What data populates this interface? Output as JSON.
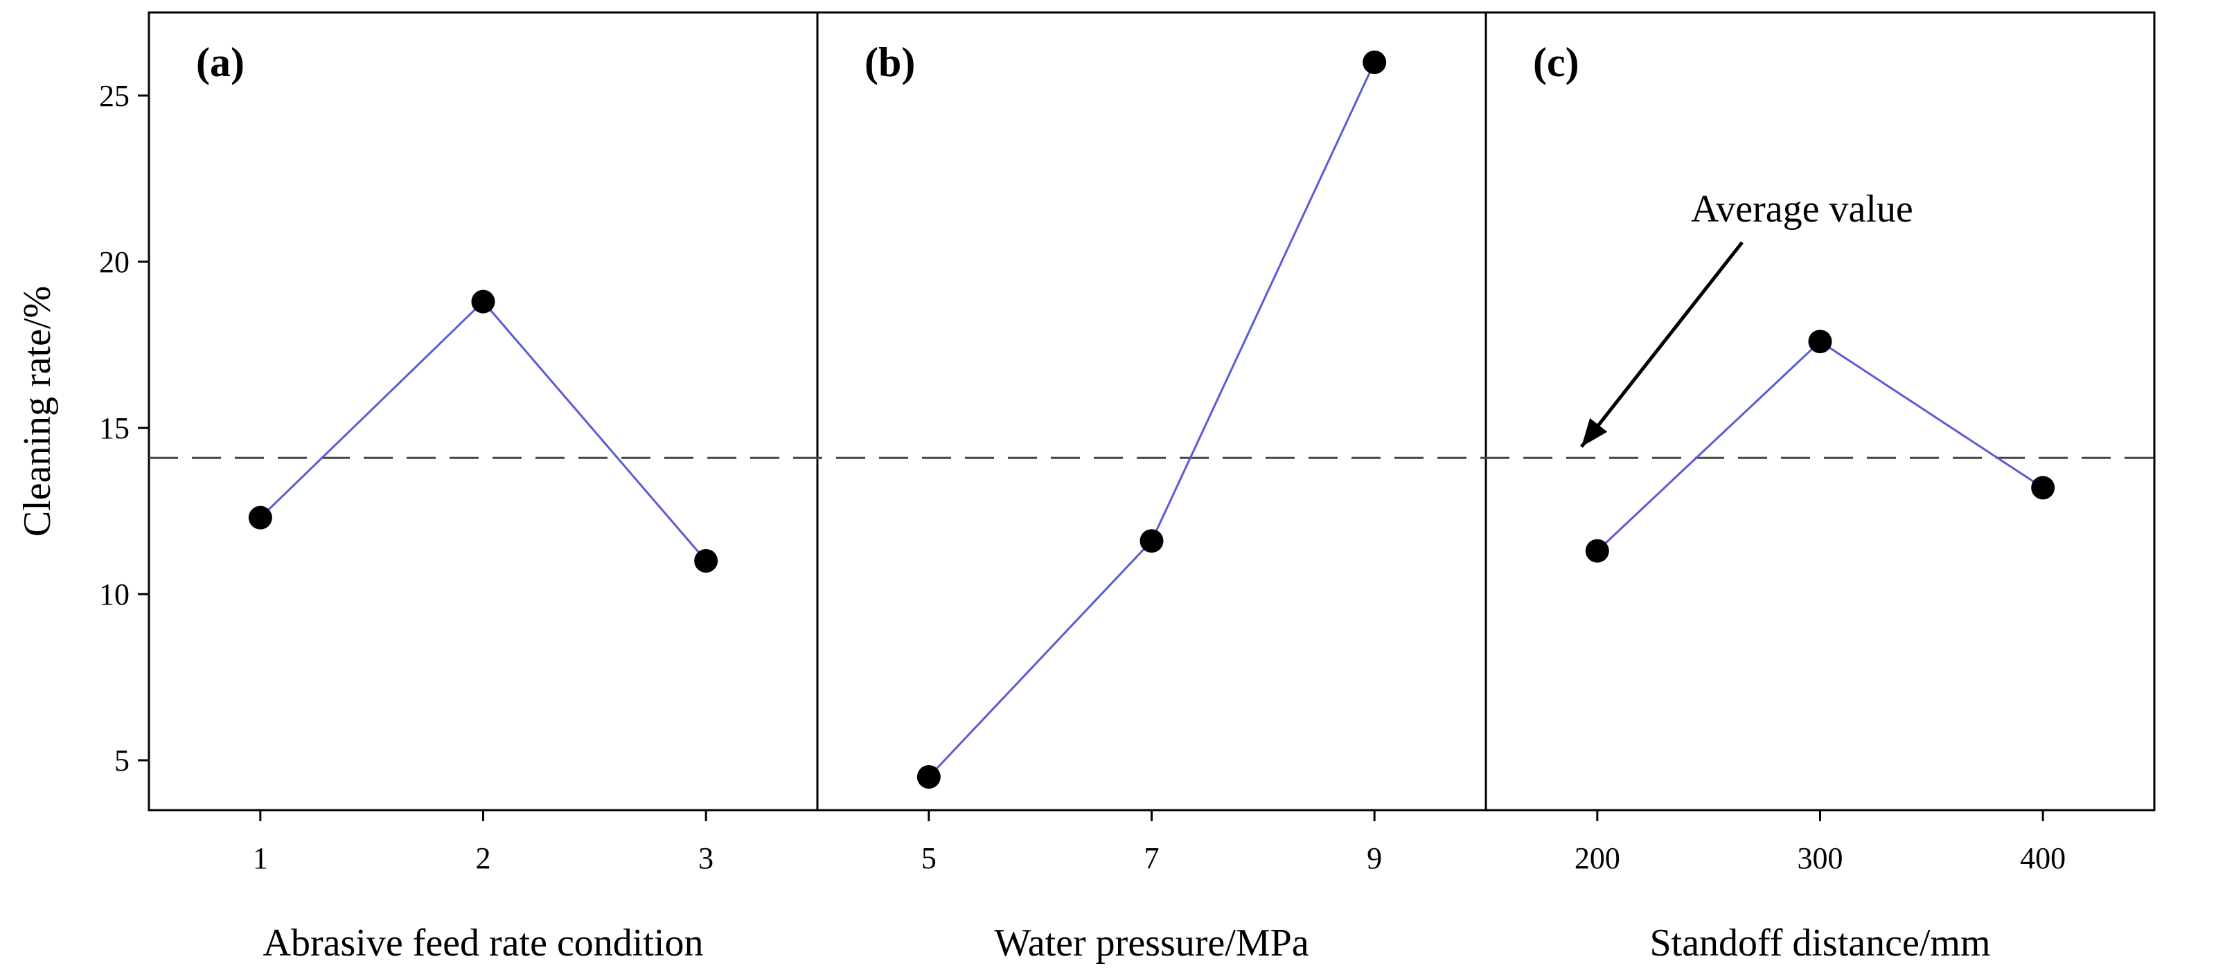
{
  "chart_data": {
    "type": "line",
    "ylabel": "Cleaning rate/%",
    "ylim": [
      3.5,
      27.5
    ],
    "yticks": [
      5,
      10,
      15,
      20,
      25
    ],
    "average_value": 14.1,
    "series_color": "#5b5bd6",
    "average_line_color": "#444444",
    "annotation": {
      "text": "Average value",
      "panel": "c"
    },
    "panels": [
      {
        "id": "a",
        "label": "(a)",
        "xlabel": "Abrasive feed rate condition",
        "categories": [
          "1",
          "2",
          "3"
        ],
        "values": [
          12.3,
          18.8,
          11.0
        ]
      },
      {
        "id": "b",
        "label": "(b)",
        "xlabel": "Water pressure/MPa",
        "categories": [
          "5",
          "7",
          "9"
        ],
        "values": [
          4.5,
          11.6,
          26.0
        ]
      },
      {
        "id": "c",
        "label": "(c)",
        "xlabel": "Standoff distance/mm",
        "categories": [
          "200",
          "300",
          "400"
        ],
        "values": [
          11.3,
          17.6,
          13.2
        ]
      }
    ]
  }
}
